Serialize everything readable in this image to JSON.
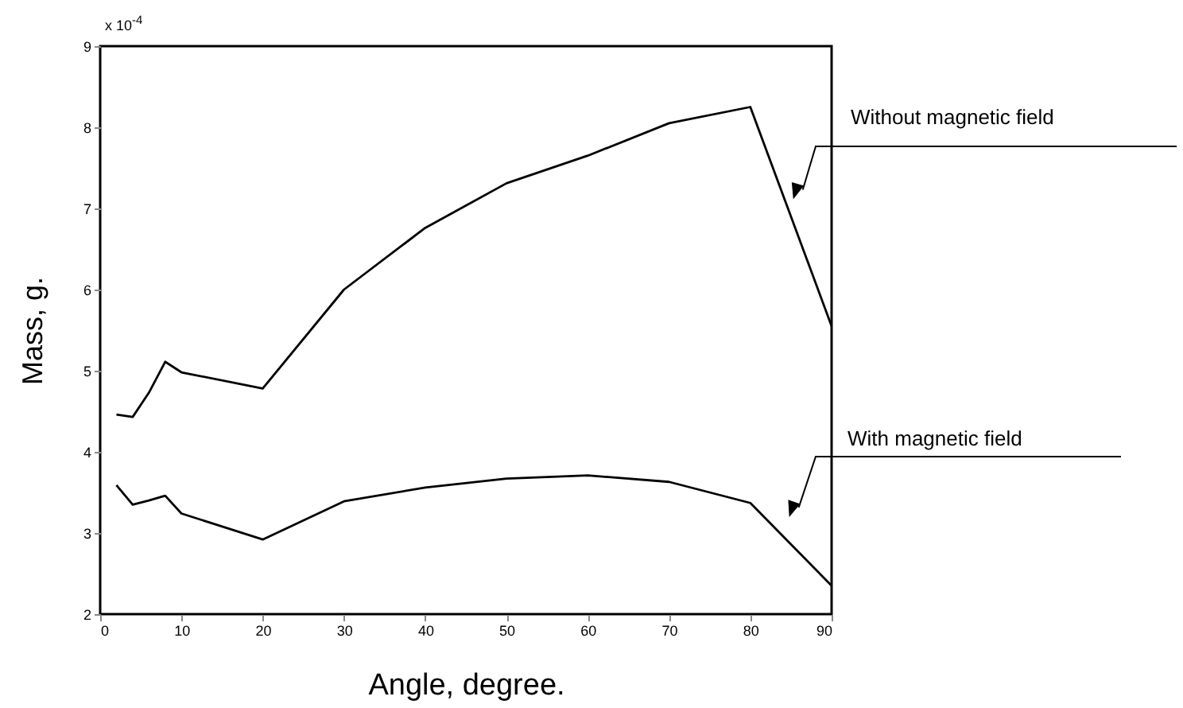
{
  "chart_data": {
    "type": "line",
    "xlabel": "Angle, degree.",
    "ylabel": "Mass, g.",
    "x": [
      2,
      4,
      6,
      8,
      10,
      20,
      30,
      40,
      50,
      60,
      70,
      80,
      90
    ],
    "series": [
      {
        "name": "Without magnetic field",
        "color": "#000000",
        "values": [
          4.46,
          4.43,
          4.73,
          5.11,
          4.98,
          4.78,
          6.0,
          6.76,
          7.31,
          7.65,
          8.05,
          8.25,
          5.55
        ]
      },
      {
        "name": "With magnetic field",
        "color": "#000000",
        "values": [
          3.59,
          3.35,
          3.4,
          3.46,
          3.24,
          2.92,
          3.39,
          3.56,
          3.67,
          3.71,
          3.63,
          3.37,
          2.35
        ]
      }
    ],
    "xlim": [
      0,
      90
    ],
    "xticks": [
      0,
      10,
      20,
      30,
      40,
      50,
      60,
      70,
      80,
      90
    ],
    "ylim": [
      2,
      9
    ],
    "yticks": [
      2,
      3,
      4,
      5,
      6,
      7,
      8,
      9
    ],
    "annotations": [
      "x 10$^{-4}$"
    ],
    "grid": false,
    "legend": false,
    "marker": "none",
    "line_style": "solid"
  }
}
